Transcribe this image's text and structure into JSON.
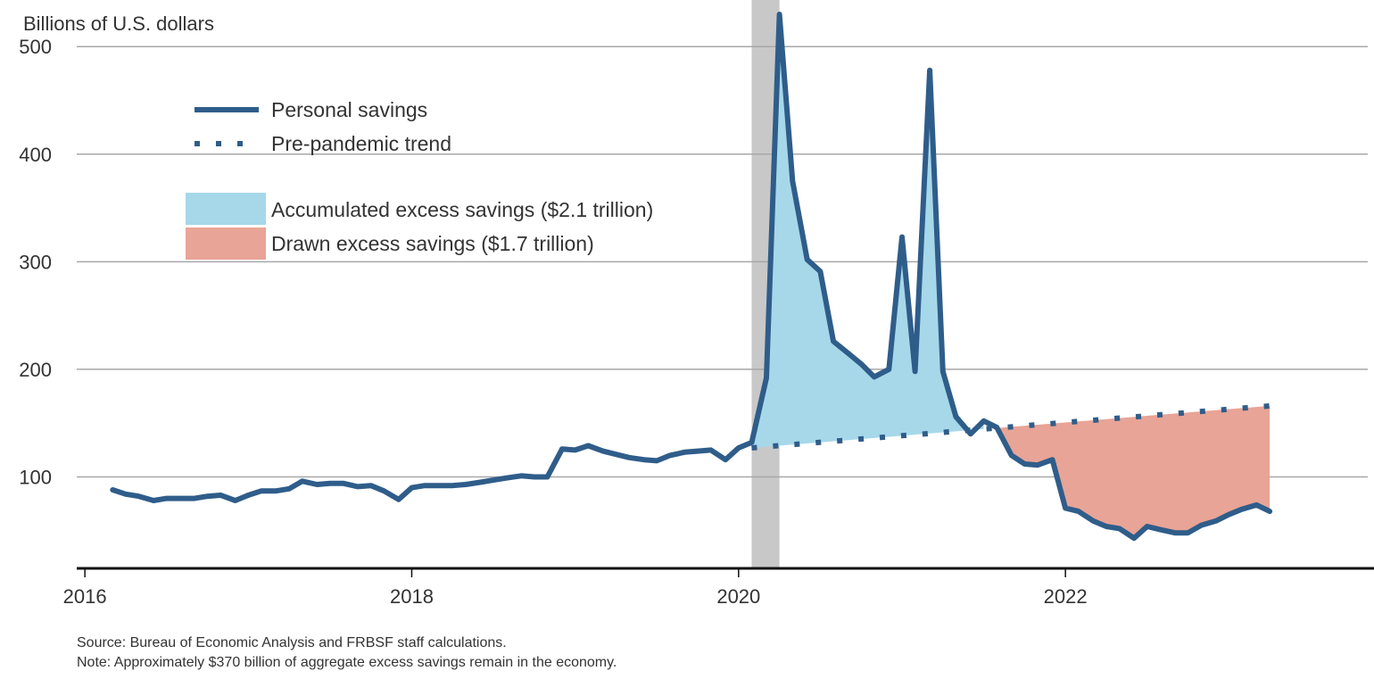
{
  "chart_data": {
    "type": "line",
    "y_unit_label": "Billions of U.S. dollars",
    "ylim": [
      15,
      535
    ],
    "y_ticks": [
      100,
      200,
      300,
      400,
      500
    ],
    "xlim": [
      2015.95,
      2023.85
    ],
    "x_ticks": [
      2016,
      2018,
      2020,
      2022
    ],
    "grid": "horizontal",
    "legend_placement": "upper-left",
    "recession_shading": {
      "start": 2020.08,
      "end": 2020.25,
      "color": "#c8c8c8"
    },
    "series": [
      {
        "name": "Personal savings",
        "style": "solid",
        "color": "#2f5d8a",
        "points": [
          [
            2016.17,
            88
          ],
          [
            2016.25,
            84
          ],
          [
            2016.33,
            82
          ],
          [
            2016.42,
            78
          ],
          [
            2016.5,
            80
          ],
          [
            2016.58,
            80
          ],
          [
            2016.67,
            80
          ],
          [
            2016.75,
            82
          ],
          [
            2016.83,
            83
          ],
          [
            2016.92,
            78
          ],
          [
            2017.0,
            83
          ],
          [
            2017.08,
            87
          ],
          [
            2017.17,
            87
          ],
          [
            2017.25,
            89
          ],
          [
            2017.33,
            96
          ],
          [
            2017.42,
            93
          ],
          [
            2017.5,
            94
          ],
          [
            2017.58,
            94
          ],
          [
            2017.67,
            91
          ],
          [
            2017.75,
            92
          ],
          [
            2017.83,
            87
          ],
          [
            2017.92,
            79
          ],
          [
            2018.0,
            90
          ],
          [
            2018.08,
            92
          ],
          [
            2018.17,
            92
          ],
          [
            2018.25,
            92
          ],
          [
            2018.33,
            93
          ],
          [
            2018.42,
            95
          ],
          [
            2018.5,
            97
          ],
          [
            2018.58,
            99
          ],
          [
            2018.67,
            101
          ],
          [
            2018.75,
            100
          ],
          [
            2018.83,
            100
          ],
          [
            2018.92,
            126
          ],
          [
            2019.0,
            125
          ],
          [
            2019.08,
            129
          ],
          [
            2019.17,
            124
          ],
          [
            2019.25,
            121
          ],
          [
            2019.33,
            118
          ],
          [
            2019.42,
            116
          ],
          [
            2019.5,
            115
          ],
          [
            2019.58,
            120
          ],
          [
            2019.67,
            123
          ],
          [
            2019.75,
            124
          ],
          [
            2019.83,
            125
          ],
          [
            2019.92,
            116
          ],
          [
            2020.0,
            127
          ],
          [
            2020.08,
            132
          ],
          [
            2020.17,
            192
          ],
          [
            2020.25,
            530
          ],
          [
            2020.33,
            375
          ],
          [
            2020.42,
            302
          ],
          [
            2020.5,
            291
          ],
          [
            2020.58,
            226
          ],
          [
            2020.67,
            215
          ],
          [
            2020.75,
            205
          ],
          [
            2020.83,
            193
          ],
          [
            2020.92,
            200
          ],
          [
            2021.0,
            323
          ],
          [
            2021.08,
            198
          ],
          [
            2021.17,
            478
          ],
          [
            2021.25,
            198
          ],
          [
            2021.33,
            156
          ],
          [
            2021.42,
            140
          ],
          [
            2021.5,
            152
          ],
          [
            2021.58,
            146
          ],
          [
            2021.67,
            120
          ],
          [
            2021.75,
            112
          ],
          [
            2021.83,
            111
          ],
          [
            2021.92,
            116
          ],
          [
            2022.0,
            71
          ],
          [
            2022.08,
            68
          ],
          [
            2022.17,
            59
          ],
          [
            2022.25,
            54
          ],
          [
            2022.33,
            52
          ],
          [
            2022.42,
            43
          ],
          [
            2022.5,
            54
          ],
          [
            2022.58,
            51
          ],
          [
            2022.67,
            48
          ],
          [
            2022.75,
            48
          ],
          [
            2022.83,
            55
          ],
          [
            2022.92,
            59
          ],
          [
            2023.0,
            65
          ],
          [
            2023.08,
            70
          ],
          [
            2023.17,
            74
          ],
          [
            2023.25,
            68
          ]
        ]
      },
      {
        "name": "Pre-pandemic trend",
        "style": "dotted",
        "color": "#2f5d8a",
        "points": [
          [
            2020.08,
            127
          ],
          [
            2023.25,
            166
          ]
        ]
      }
    ],
    "areas": [
      {
        "name": "Accumulated excess savings ($2.1 trillion)",
        "color": "#a6d8ea",
        "from": 2020.08,
        "to": 2021.5
      },
      {
        "name": "Drawn excess savings ($1.7 trillion)",
        "color": "#e8a496",
        "from": 2021.58,
        "to": 2023.25
      }
    ]
  },
  "notes": {
    "source": "Source: Bureau of Economic Analysis and FRBSF staff calculations.",
    "note": "Note: Approximately $370 billion of aggregate excess savings remain in the economy."
  }
}
